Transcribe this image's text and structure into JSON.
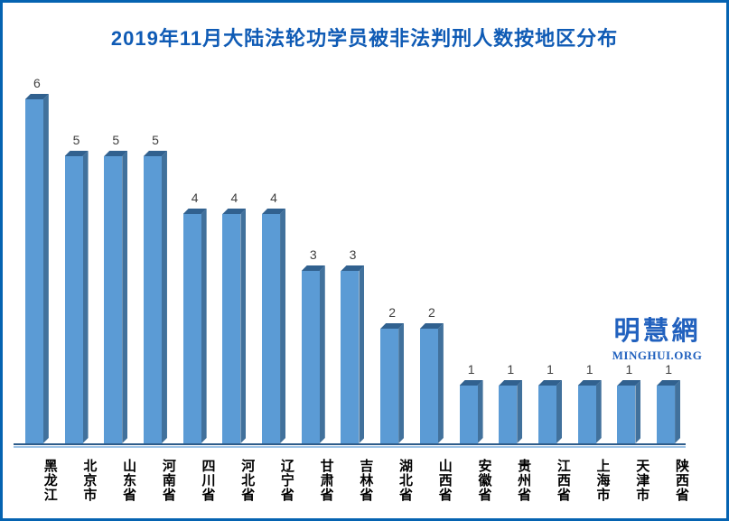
{
  "page": {
    "border_color": "#0563B1",
    "background": "#FFFFFF"
  },
  "header": {
    "title": "2019年11月大陆法轮功学员被非法判刑人数按地区分布",
    "title_color": "#0F5BB5"
  },
  "watermark": {
    "name": "明慧網",
    "url_text": "MINGHUI.ORG",
    "color": "#2161BE"
  },
  "chart_data": {
    "type": "bar",
    "style": "3d-bar",
    "title": "2019年11月大陆法轮功学员被非法判刑人数按地区分布",
    "categories": [
      "黑龙江",
      "北京市",
      "山东省",
      "河南省",
      "四川省",
      "河北省",
      "辽宁省",
      "甘肃省",
      "吉林省",
      "湖北省",
      "山西省",
      "安徽省",
      "贵州省",
      "江西省",
      "上海市",
      "天津市",
      "陕西省"
    ],
    "values": [
      6,
      5,
      5,
      5,
      4,
      4,
      4,
      3,
      3,
      2,
      2,
      1,
      1,
      1,
      1,
      1,
      1
    ],
    "xlabel": "",
    "ylabel": "",
    "ylim": [
      0,
      6
    ],
    "grid": false,
    "legend": false,
    "value_labels_shown": true,
    "category_label_orientation": "vertical",
    "colors": {
      "bar_face": "#5B9BD5",
      "bar_side": "#41719C",
      "bar_top": "#31618F",
      "axis_line_dark": "#2E5C8A",
      "axis_line_light": "#9DC3E6",
      "value_label": "#3F3F3F",
      "category_label": "#000000"
    }
  }
}
